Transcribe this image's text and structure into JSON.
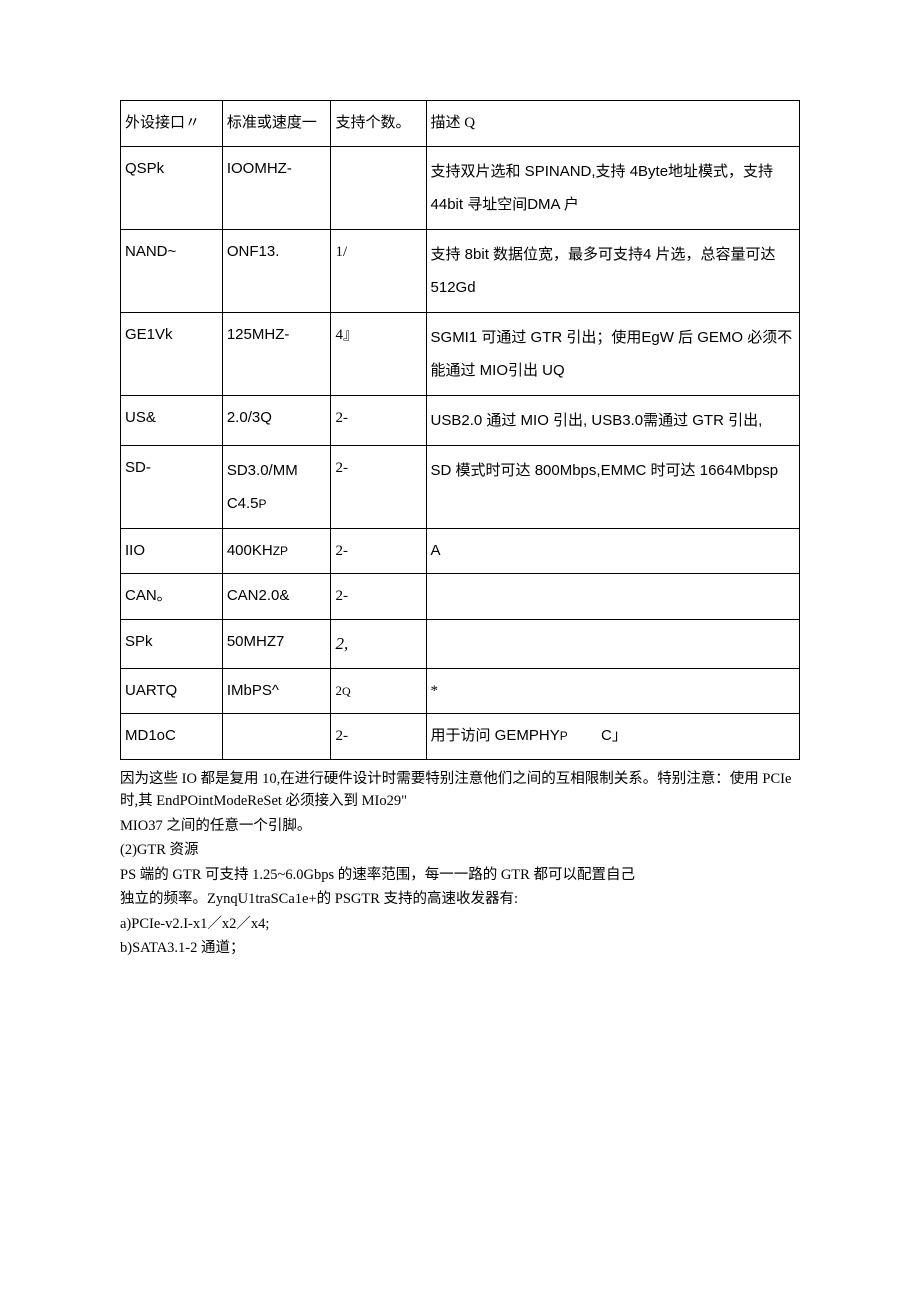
{
  "table": {
    "header": {
      "c1": "外设接口〃",
      "c2": "标准或速度一",
      "c3": "支持个数。",
      "c4": "描述 Q"
    },
    "rows": [
      {
        "c1": "QSPk",
        "c2": "IOOMHZ-",
        "c3": "",
        "c4": "支持双片选和 SPINAND,支持 4Byte地址模式，支持 44bit 寻址空间DMA 户"
      },
      {
        "c1": "NAND~",
        "c2": "ONF13.",
        "c3": "1/",
        "c4": "支持 8bit 数据位宽，最多可支持4 片选，总容量可达 512Gd"
      },
      {
        "c1": "GE1Vk",
        "c2": "125MHZ-",
        "c3": "4』",
        "c4": "SGMI1 可通过 GTR 引出；使用EgW 后 GEMO 必须不能通过 MIO引出 UQ"
      },
      {
        "c1": "US&",
        "c2": "2.0/3Q",
        "c3": "2-",
        "c4": "USB2.0 通过 MIO 引出, USB3.0需通过 GTR 引出,"
      },
      {
        "c1": "SD-",
        "c2_a": "SD3.0/MM",
        "c2_b": "C4.5",
        "c2_c": "P",
        "c3": "2-",
        "c4": "SD 模式时可达 800Mbps,EMMC 时可达 1664Mbpsp"
      },
      {
        "c1": "IIO",
        "c2_a": "400KH",
        "c2_b": "ZP",
        "c3": "2-",
        "c4": "A"
      },
      {
        "c1": "CAN。",
        "c2": "CAN2.0&",
        "c3": "2-",
        "c4": ""
      },
      {
        "c1": "SPk",
        "c2": "50MHZ7",
        "c3": "2,",
        "c4": ""
      },
      {
        "c1": "UARTQ",
        "c2": "IMbPS^",
        "c3_a": "2",
        "c3_b": "Q",
        "c4": "*"
      },
      {
        "c1": "MD1oC",
        "c2": "",
        "c3": "2-",
        "c4_a": "用于访问 GEMPHY",
        "c4_b": "P",
        "c4_c": "        C」"
      }
    ]
  },
  "paragraphs": {
    "p1": "因为这些 IO 都是复用 10,在进行硬件设计时需要特别注意他们之间的互相限制关系。特别注意：使用 PCIe 时,其 EndPOintModeReSet 必须接入到 MIo29\"",
    "p2": "MIO37 之间的任意一个引脚。",
    "p3": "(2)GTR 资源",
    "p4": "PS 端的 GTR 可支持 1.25~6.0Gbps 的速率范围，每一一路的 GTR 都可以配置自己",
    "p5": "独立的频率。ZynqU1traSCa1e+的 PSGTR 支持的高速收发器有:",
    "p6": "a)PCIe-v2.I-x1／x2／x4;",
    "p7": "b)SATA3.1-2 通道；"
  }
}
